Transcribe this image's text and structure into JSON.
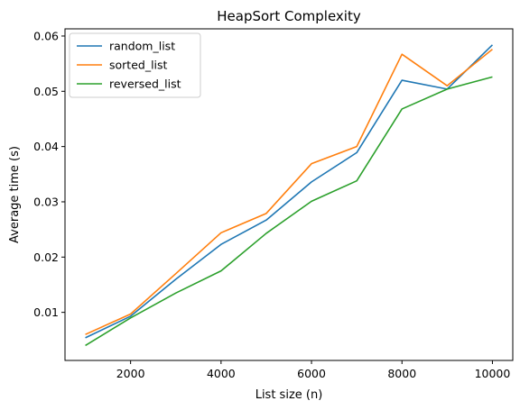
{
  "chart_data": {
    "type": "line",
    "title": "HeapSort Complexity",
    "xlabel": "List size (n)",
    "ylabel": "Average time (s)",
    "xlim": [
      550,
      10450
    ],
    "ylim": [
      0.0013,
      0.0613
    ],
    "x_ticks": [
      2000,
      4000,
      6000,
      8000,
      10000
    ],
    "x_tick_labels": [
      "2000",
      "4000",
      "6000",
      "8000",
      "10000"
    ],
    "y_ticks": [
      0.01,
      0.02,
      0.03,
      0.04,
      0.05,
      0.06
    ],
    "y_tick_labels": [
      "0.01",
      "0.02",
      "0.03",
      "0.04",
      "0.05",
      "0.06"
    ],
    "grid": false,
    "legend_position": "top-left",
    "x": [
      1000,
      2000,
      3000,
      4000,
      5000,
      6000,
      7000,
      8000,
      9000,
      10000
    ],
    "series": [
      {
        "name": "random_list",
        "color": "#1f77b4",
        "values": [
          0.0054,
          0.0093,
          0.016,
          0.0223,
          0.0267,
          0.0336,
          0.0389,
          0.052,
          0.0504,
          0.0584
        ]
      },
      {
        "name": "sorted_list",
        "color": "#ff7f0e",
        "values": [
          0.006,
          0.0097,
          0.017,
          0.0244,
          0.0279,
          0.0369,
          0.04,
          0.0567,
          0.051,
          0.0576
        ]
      },
      {
        "name": "reversed_list",
        "color": "#2ca02c",
        "values": [
          0.004,
          0.009,
          0.0135,
          0.0175,
          0.0243,
          0.0301,
          0.0338,
          0.0468,
          0.0504,
          0.0526
        ]
      }
    ]
  }
}
